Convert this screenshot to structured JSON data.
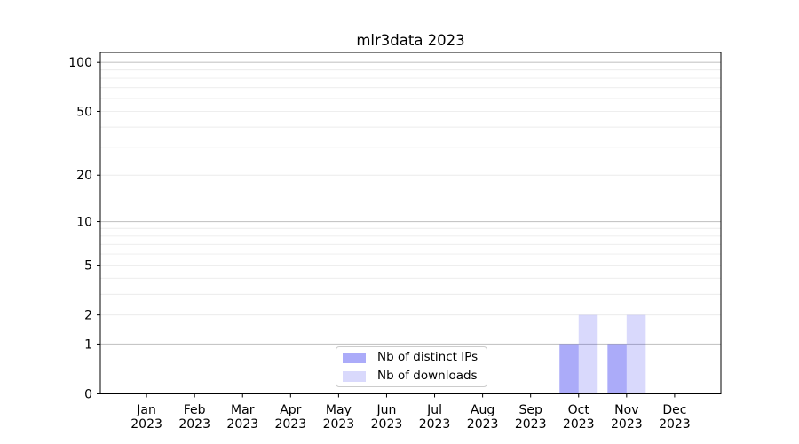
{
  "chart_data": {
    "type": "bar",
    "title": "mlr3data 2023",
    "categories": [
      "Jan 2023",
      "Feb 2023",
      "Mar 2023",
      "Apr 2023",
      "May 2023",
      "Jun 2023",
      "Jul 2023",
      "Aug 2023",
      "Sep 2023",
      "Oct 2023",
      "Nov 2023",
      "Dec 2023"
    ],
    "series": [
      {
        "name": "Nb of distinct IPs",
        "color": "rgba(0,0,238,0.33)",
        "values": [
          0,
          0,
          0,
          0,
          0,
          0,
          0,
          0,
          0,
          1,
          1,
          0
        ]
      },
      {
        "name": "Nb of downloads",
        "color": "rgba(0,0,238,0.15)",
        "values": [
          0,
          0,
          0,
          0,
          0,
          0,
          0,
          0,
          0,
          2,
          2,
          0
        ]
      }
    ],
    "xlabel": "",
    "ylabel": "",
    "y_axis": {
      "scale": "log1p",
      "range": [
        0,
        115
      ],
      "tick_values": [
        0,
        1,
        2,
        5,
        10,
        20,
        50,
        100
      ],
      "major_gridlines": [
        1,
        10,
        100
      ],
      "minor_gridlines": [
        2,
        3,
        4,
        5,
        6,
        7,
        8,
        9,
        20,
        30,
        40,
        50,
        60,
        70,
        80,
        90
      ]
    },
    "legend": {
      "location": "lower center"
    },
    "grid": true
  },
  "style": {
    "axis_color": "#000000",
    "major_grid_color": "#c6c6c6",
    "minor_grid_color": "#ececec",
    "text_color": "#000000",
    "background": "#ffffff"
  }
}
